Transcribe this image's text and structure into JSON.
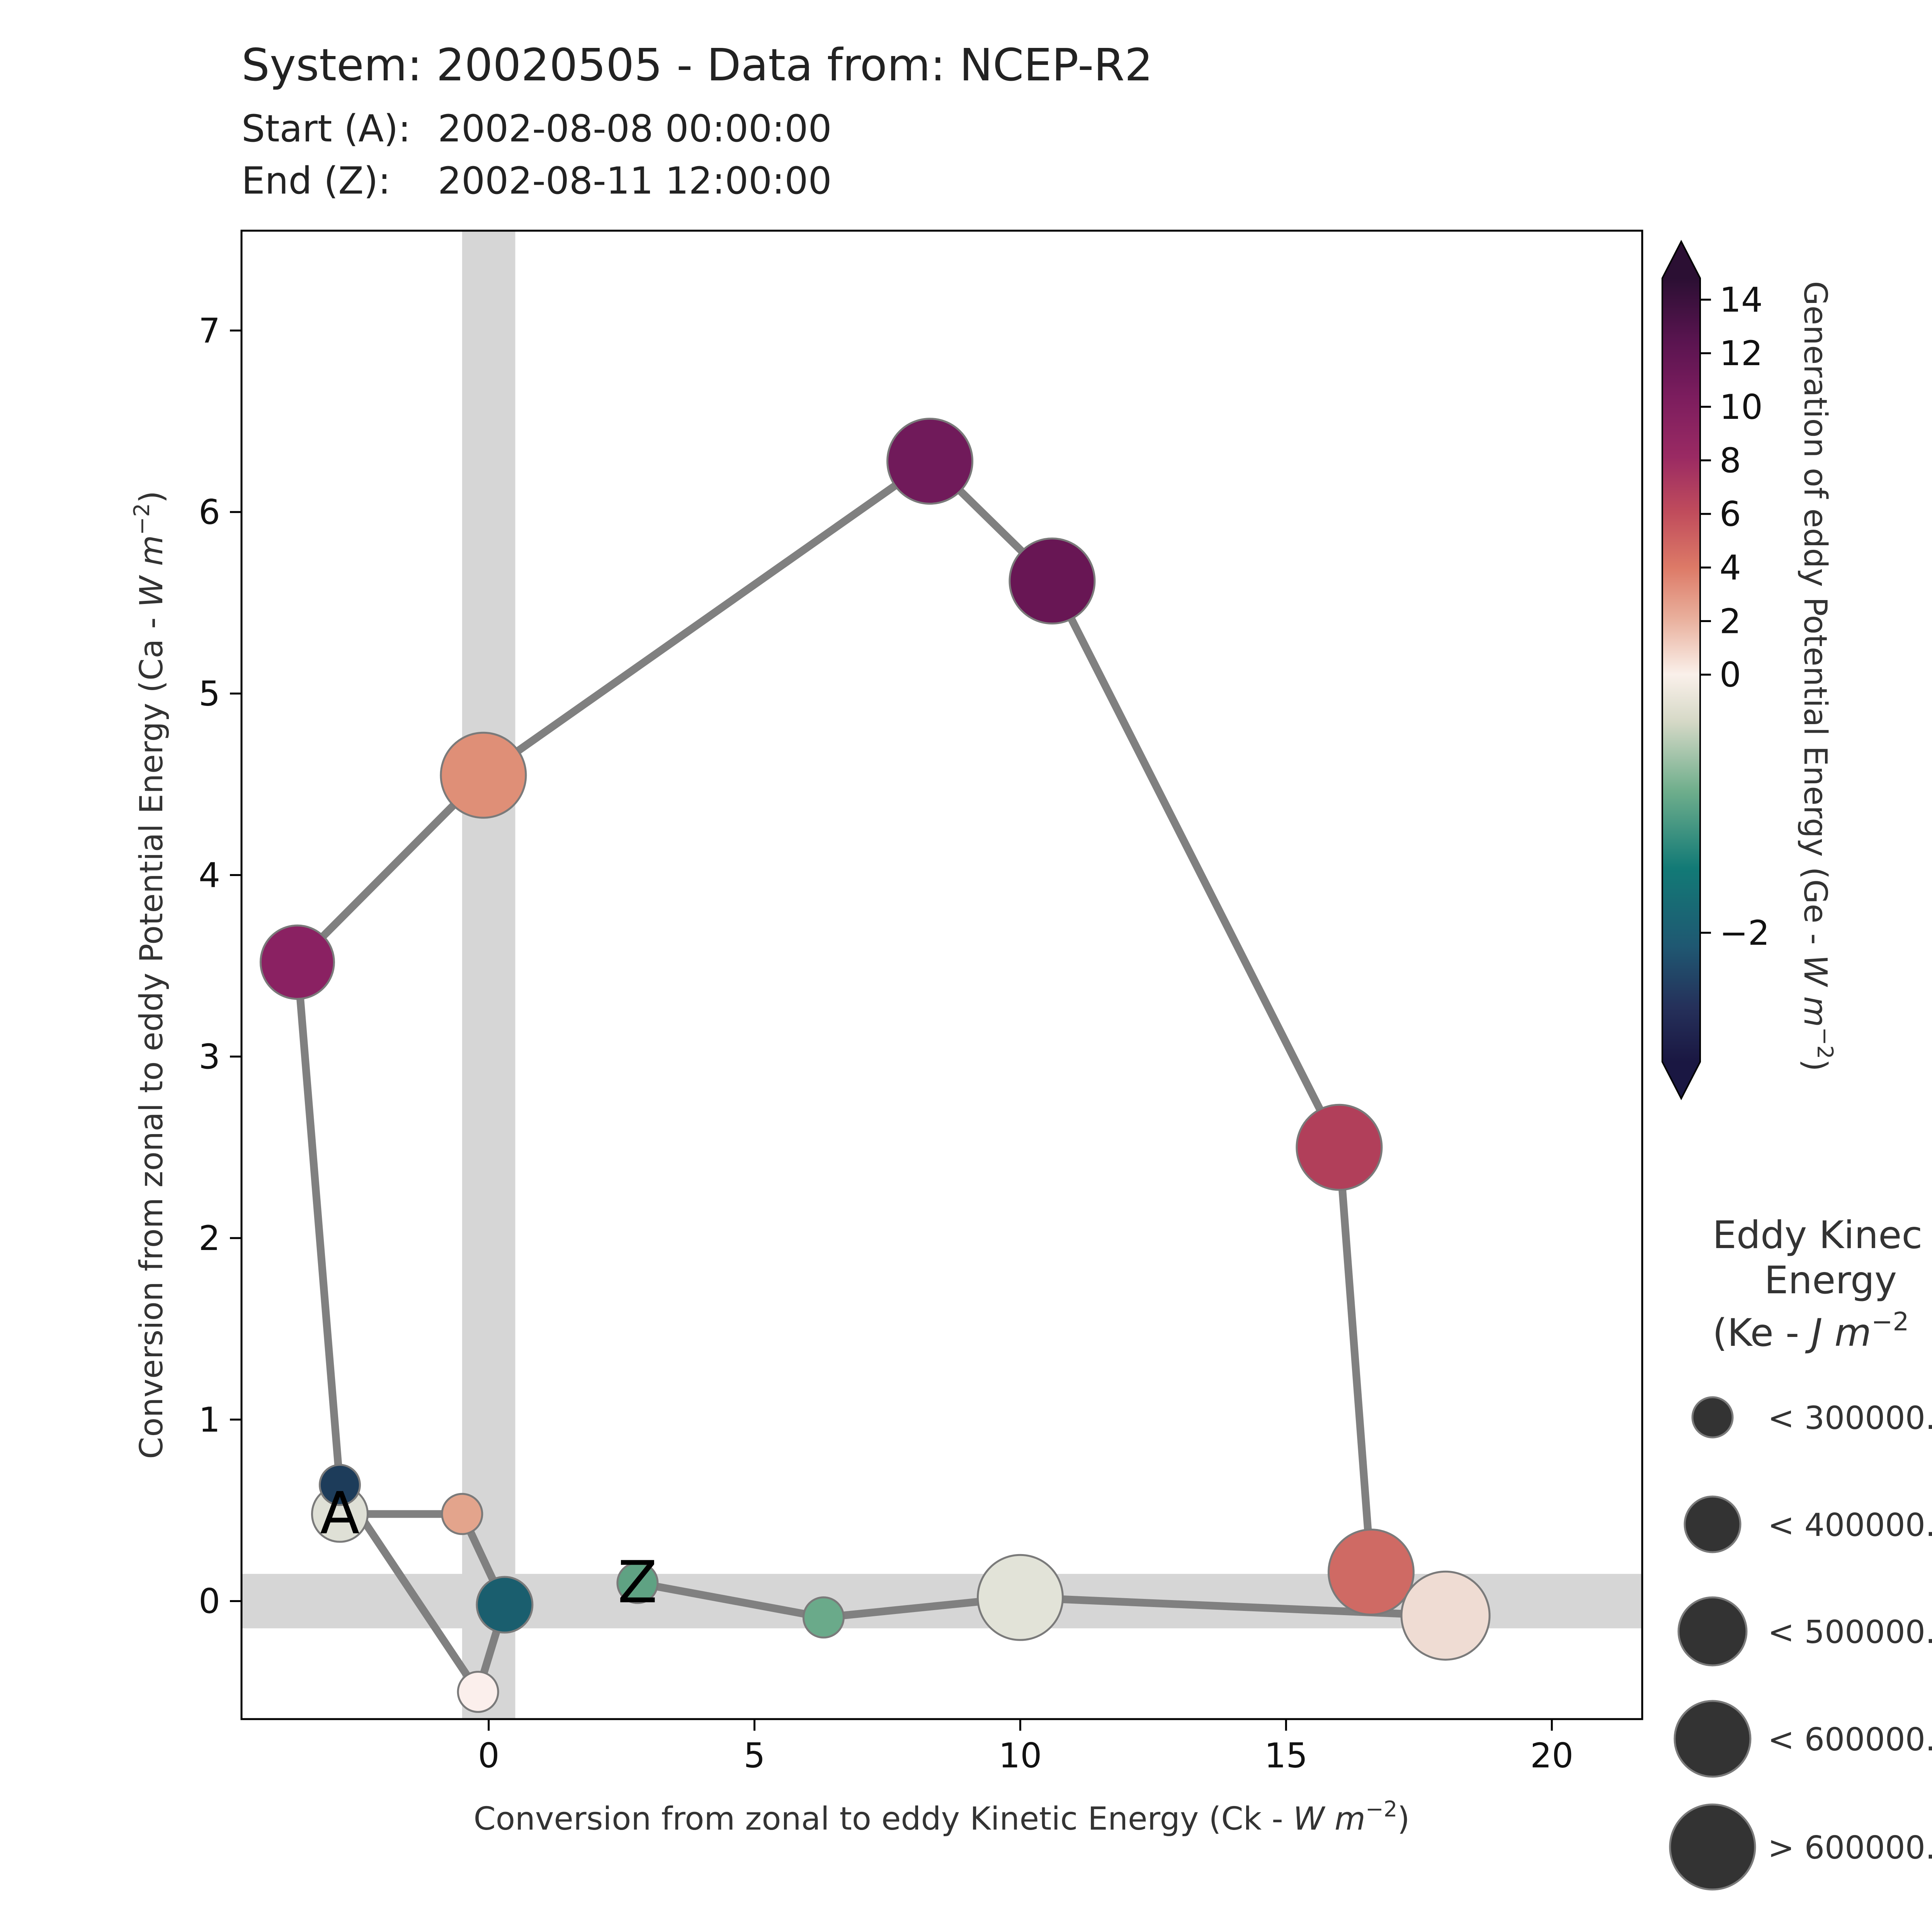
{
  "header": {
    "title": "System: 20020505 - Data from: NCEP-R2",
    "start_label": "Start (A):",
    "start_value": "2002-08-08 00:00:00",
    "end_label": "End (Z):",
    "end_value": "2002-08-11 12:00:00"
  },
  "chart_data": {
    "type": "scatter",
    "xlabel": "Conversion from zonal to eddy Kinetic Energy (Ck -  ",
    "xlabel_unit": "W m",
    "xlabel_exp": "−2",
    "ylabel": "Conversion from zonal to eddy Potential Energy (Ca -  ",
    "ylabel_unit": "W m",
    "ylabel_exp": "−2",
    "xlim": [
      -4.65,
      21.7
    ],
    "ylim": [
      -0.65,
      7.55
    ],
    "xticks": [
      "0",
      "5",
      "10",
      "15",
      "20"
    ],
    "xtick_values": [
      0,
      5,
      10,
      15,
      20
    ],
    "yticks": [
      "0",
      "1",
      "2",
      "3",
      "4",
      "5",
      "6",
      "7"
    ],
    "ytick_values": [
      0,
      1,
      2,
      3,
      4,
      5,
      6,
      7
    ],
    "shaded_bands": {
      "x": [
        -0.5,
        0.5
      ],
      "y": [
        -0.15,
        0.15
      ]
    },
    "grid": false,
    "start_marker": "A",
    "end_marker": "Z",
    "points": [
      {
        "ck": -2.8,
        "ca": 0.48,
        "ge": -0.3,
        "ke_class": 1,
        "color": "#dfe0d6"
      },
      {
        "ck": -0.5,
        "ca": 0.48,
        "ge": 3.5,
        "ke_class": 0,
        "color": "#e3a48c"
      },
      {
        "ck": 0.3,
        "ca": -0.02,
        "ge": -2.0,
        "ke_class": 1,
        "color": "#1a5e6e"
      },
      {
        "ck": -0.2,
        "ca": -0.5,
        "ge": 0.5,
        "ke_class": 0,
        "color": "#fbefec"
      },
      {
        "ck": -2.8,
        "ca": 0.64,
        "ge": -2.7,
        "ke_class": 0,
        "color": "#1d3c5a"
      },
      {
        "ck": -3.6,
        "ca": 3.52,
        "ge": 11.0,
        "ke_class": 2,
        "color": "#8a2162"
      },
      {
        "ck": -0.1,
        "ca": 4.55,
        "ge": 5.0,
        "ke_class": 3,
        "color": "#df8f77"
      },
      {
        "ck": 8.3,
        "ca": 6.28,
        "ge": 12.0,
        "ke_class": 3,
        "color": "#701a5a"
      },
      {
        "ck": 10.6,
        "ca": 5.62,
        "ge": 13.0,
        "ke_class": 3,
        "color": "#681654"
      },
      {
        "ck": 16.0,
        "ca": 2.5,
        "ge": 9.0,
        "ke_class": 3,
        "color": "#b13f5a"
      },
      {
        "ck": 16.6,
        "ca": 0.16,
        "ge": 7.0,
        "ke_class": 3,
        "color": "#cf6a64"
      },
      {
        "ck": 18.0,
        "ca": -0.08,
        "ge": 2.0,
        "ke_class": 4,
        "color": "#efdcd3"
      },
      {
        "ck": 10.0,
        "ca": 0.02,
        "ge": -0.3,
        "ke_class": 3,
        "color": "#e2e3d8"
      },
      {
        "ck": 6.3,
        "ca": -0.09,
        "ge": -1.0,
        "ke_class": 0,
        "color": "#6aaa8a"
      },
      {
        "ck": 2.8,
        "ca": 0.1,
        "ge": -1.0,
        "ke_class": 0,
        "color": "#5fa283"
      }
    ],
    "colorbar": {
      "label": "Generation of eddy Potential Energy (Ge -  ",
      "label_unit": "W m",
      "label_exp": "−2",
      "range": [
        -3.0,
        14.8
      ],
      "upper_slope_region": [
        0,
        14.8
      ],
      "lower_slope_region": [
        -3.0,
        0
      ],
      "ticks": [
        "14",
        "12",
        "10",
        "8",
        "6",
        "4",
        "2",
        "0",
        "−2"
      ],
      "tick_values": [
        14,
        12,
        10,
        8,
        6,
        4,
        2,
        0,
        -2
      ],
      "colors_top_to_bottom": [
        "#2b0f33",
        "#681654",
        "#9a2a63",
        "#c04c5c",
        "#dd7a67",
        "#e9b09d",
        "#faf0ea",
        "#d6d9c7",
        "#6fae8c",
        "#127a76",
        "#1f5872",
        "#25305a",
        "#1a1742"
      ]
    },
    "size_legend": {
      "title_lines": [
        "Eddy Kinec",
        "Energy",
        "(Ke -  "
      ],
      "title_unit": "J m",
      "title_exp": "−2",
      "entries": [
        "< 300000.",
        "< 400000.",
        "< 500000.",
        "< 600000.",
        "> 600000."
      ]
    }
  }
}
